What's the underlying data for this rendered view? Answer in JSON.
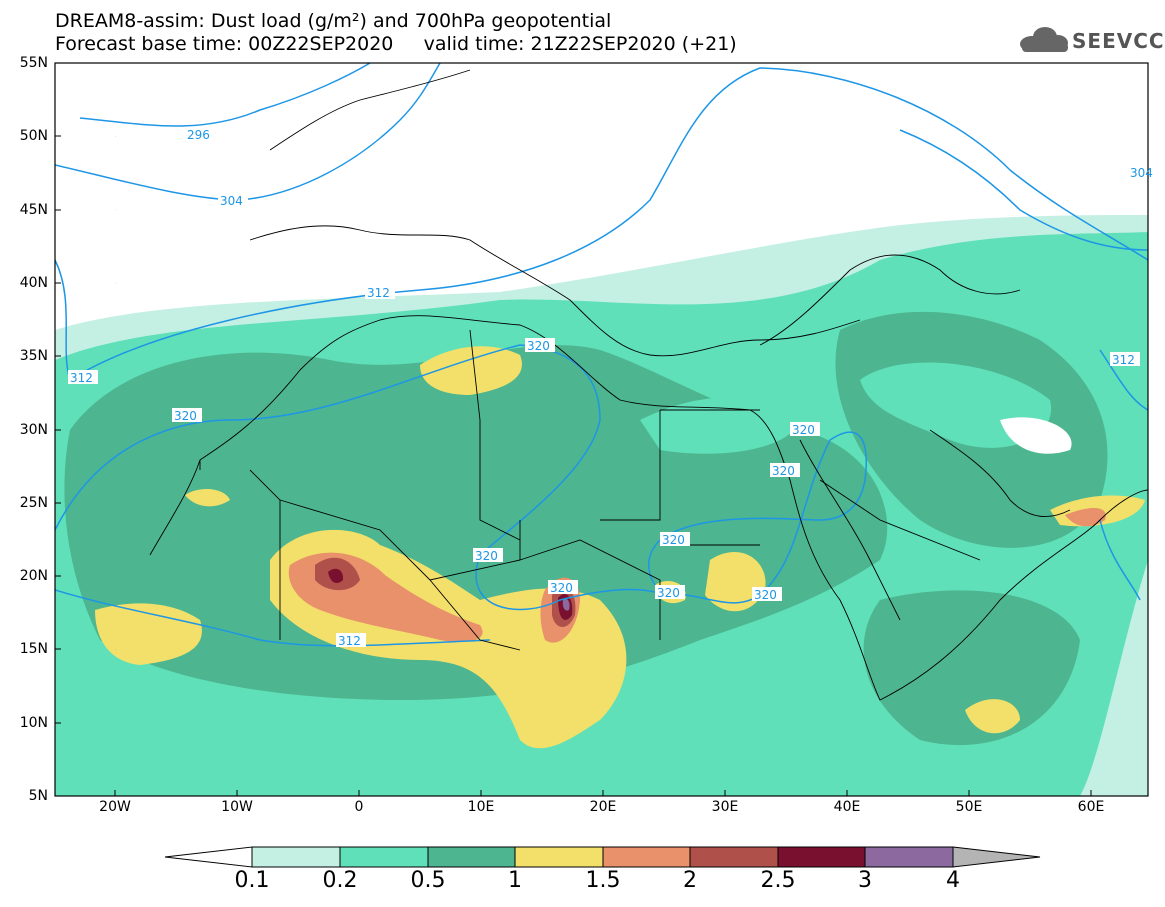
{
  "header": {
    "title_line1": "DREAM8-assim: Dust load (g/m²) and 700hPa geopotential",
    "title_line2": "Forecast base time: 00Z22SEP2020     valid time: 21Z22SEP2020 (+21)"
  },
  "logo": {
    "text": "SEEVCCC",
    "icon": "cloud-icon"
  },
  "axes": {
    "lat_labels": [
      "55N",
      "50N",
      "45N",
      "40N",
      "35N",
      "30N",
      "25N",
      "20N",
      "15N",
      "10N",
      "5N"
    ],
    "lon_labels": [
      "20W",
      "10W",
      "0",
      "10E",
      "20E",
      "30E",
      "40E",
      "50E",
      "60E"
    ]
  },
  "contours": {
    "labels": [
      "296",
      "304",
      "312",
      "312",
      "312",
      "320",
      "320",
      "320",
      "320",
      "320",
      "320",
      "320",
      "320",
      "320",
      "312",
      "304"
    ]
  },
  "colorbar": {
    "labels": [
      "0.1",
      "0.2",
      "0.5",
      "1",
      "1.5",
      "2",
      "2.5",
      "3",
      "4"
    ],
    "colors": [
      "#c4f0e4",
      "#5fe0b8",
      "#4db58f",
      "#f2e06a",
      "#e8916a",
      "#b0504a",
      "#7a1030",
      "#8c6aa0"
    ],
    "below_color": "#ffffff",
    "above_color": "#b4b4b4"
  }
}
